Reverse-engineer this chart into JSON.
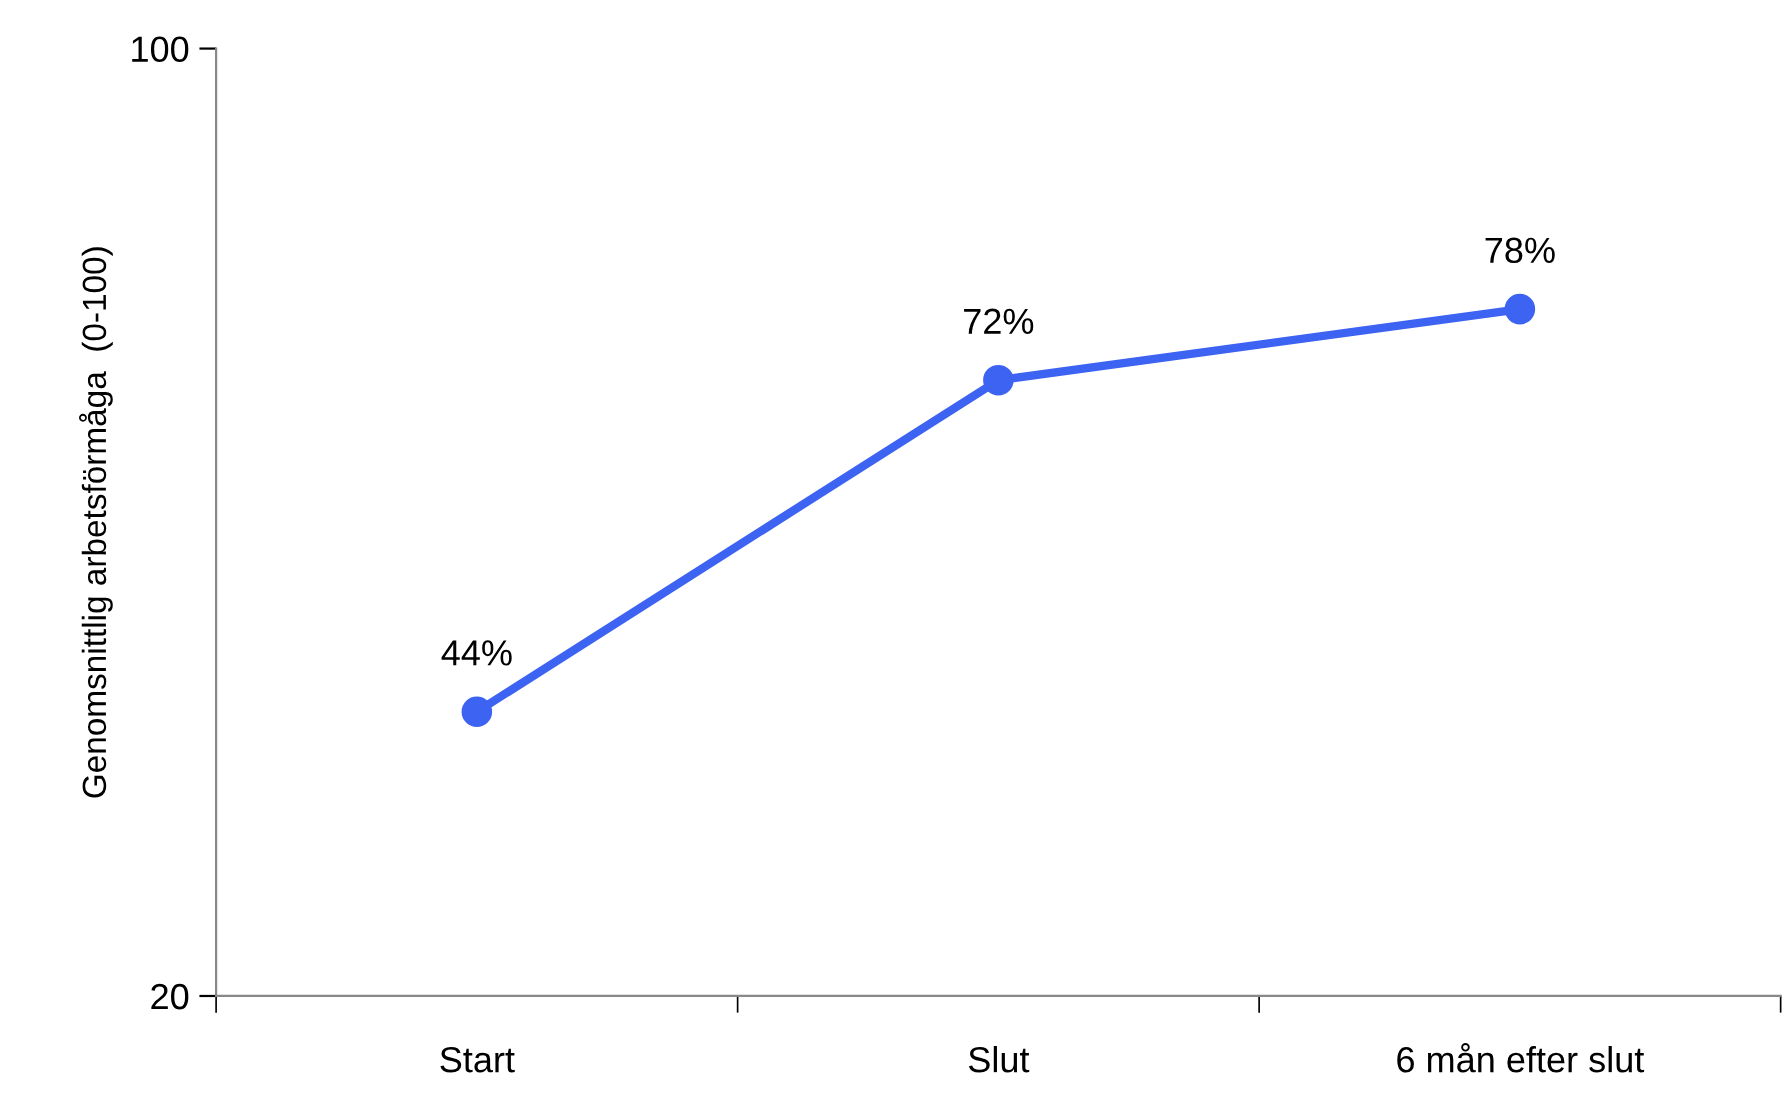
{
  "chart_data": {
    "type": "line",
    "ylabel": "Genomsnittlig arbetsförmåga  (0-100)",
    "categories": [
      "Start",
      "Slut",
      "6 mån efter slut"
    ],
    "series": [
      {
        "color": "#3d63f2",
        "values": [
          44,
          72,
          78
        ],
        "value_labels": [
          "44%",
          "72%",
          "78%"
        ]
      }
    ],
    "ylim": [
      20,
      100
    ],
    "yticks": [
      20,
      100
    ],
    "grid": false,
    "legend": false,
    "marker": "circle",
    "line_style": "solid"
  }
}
